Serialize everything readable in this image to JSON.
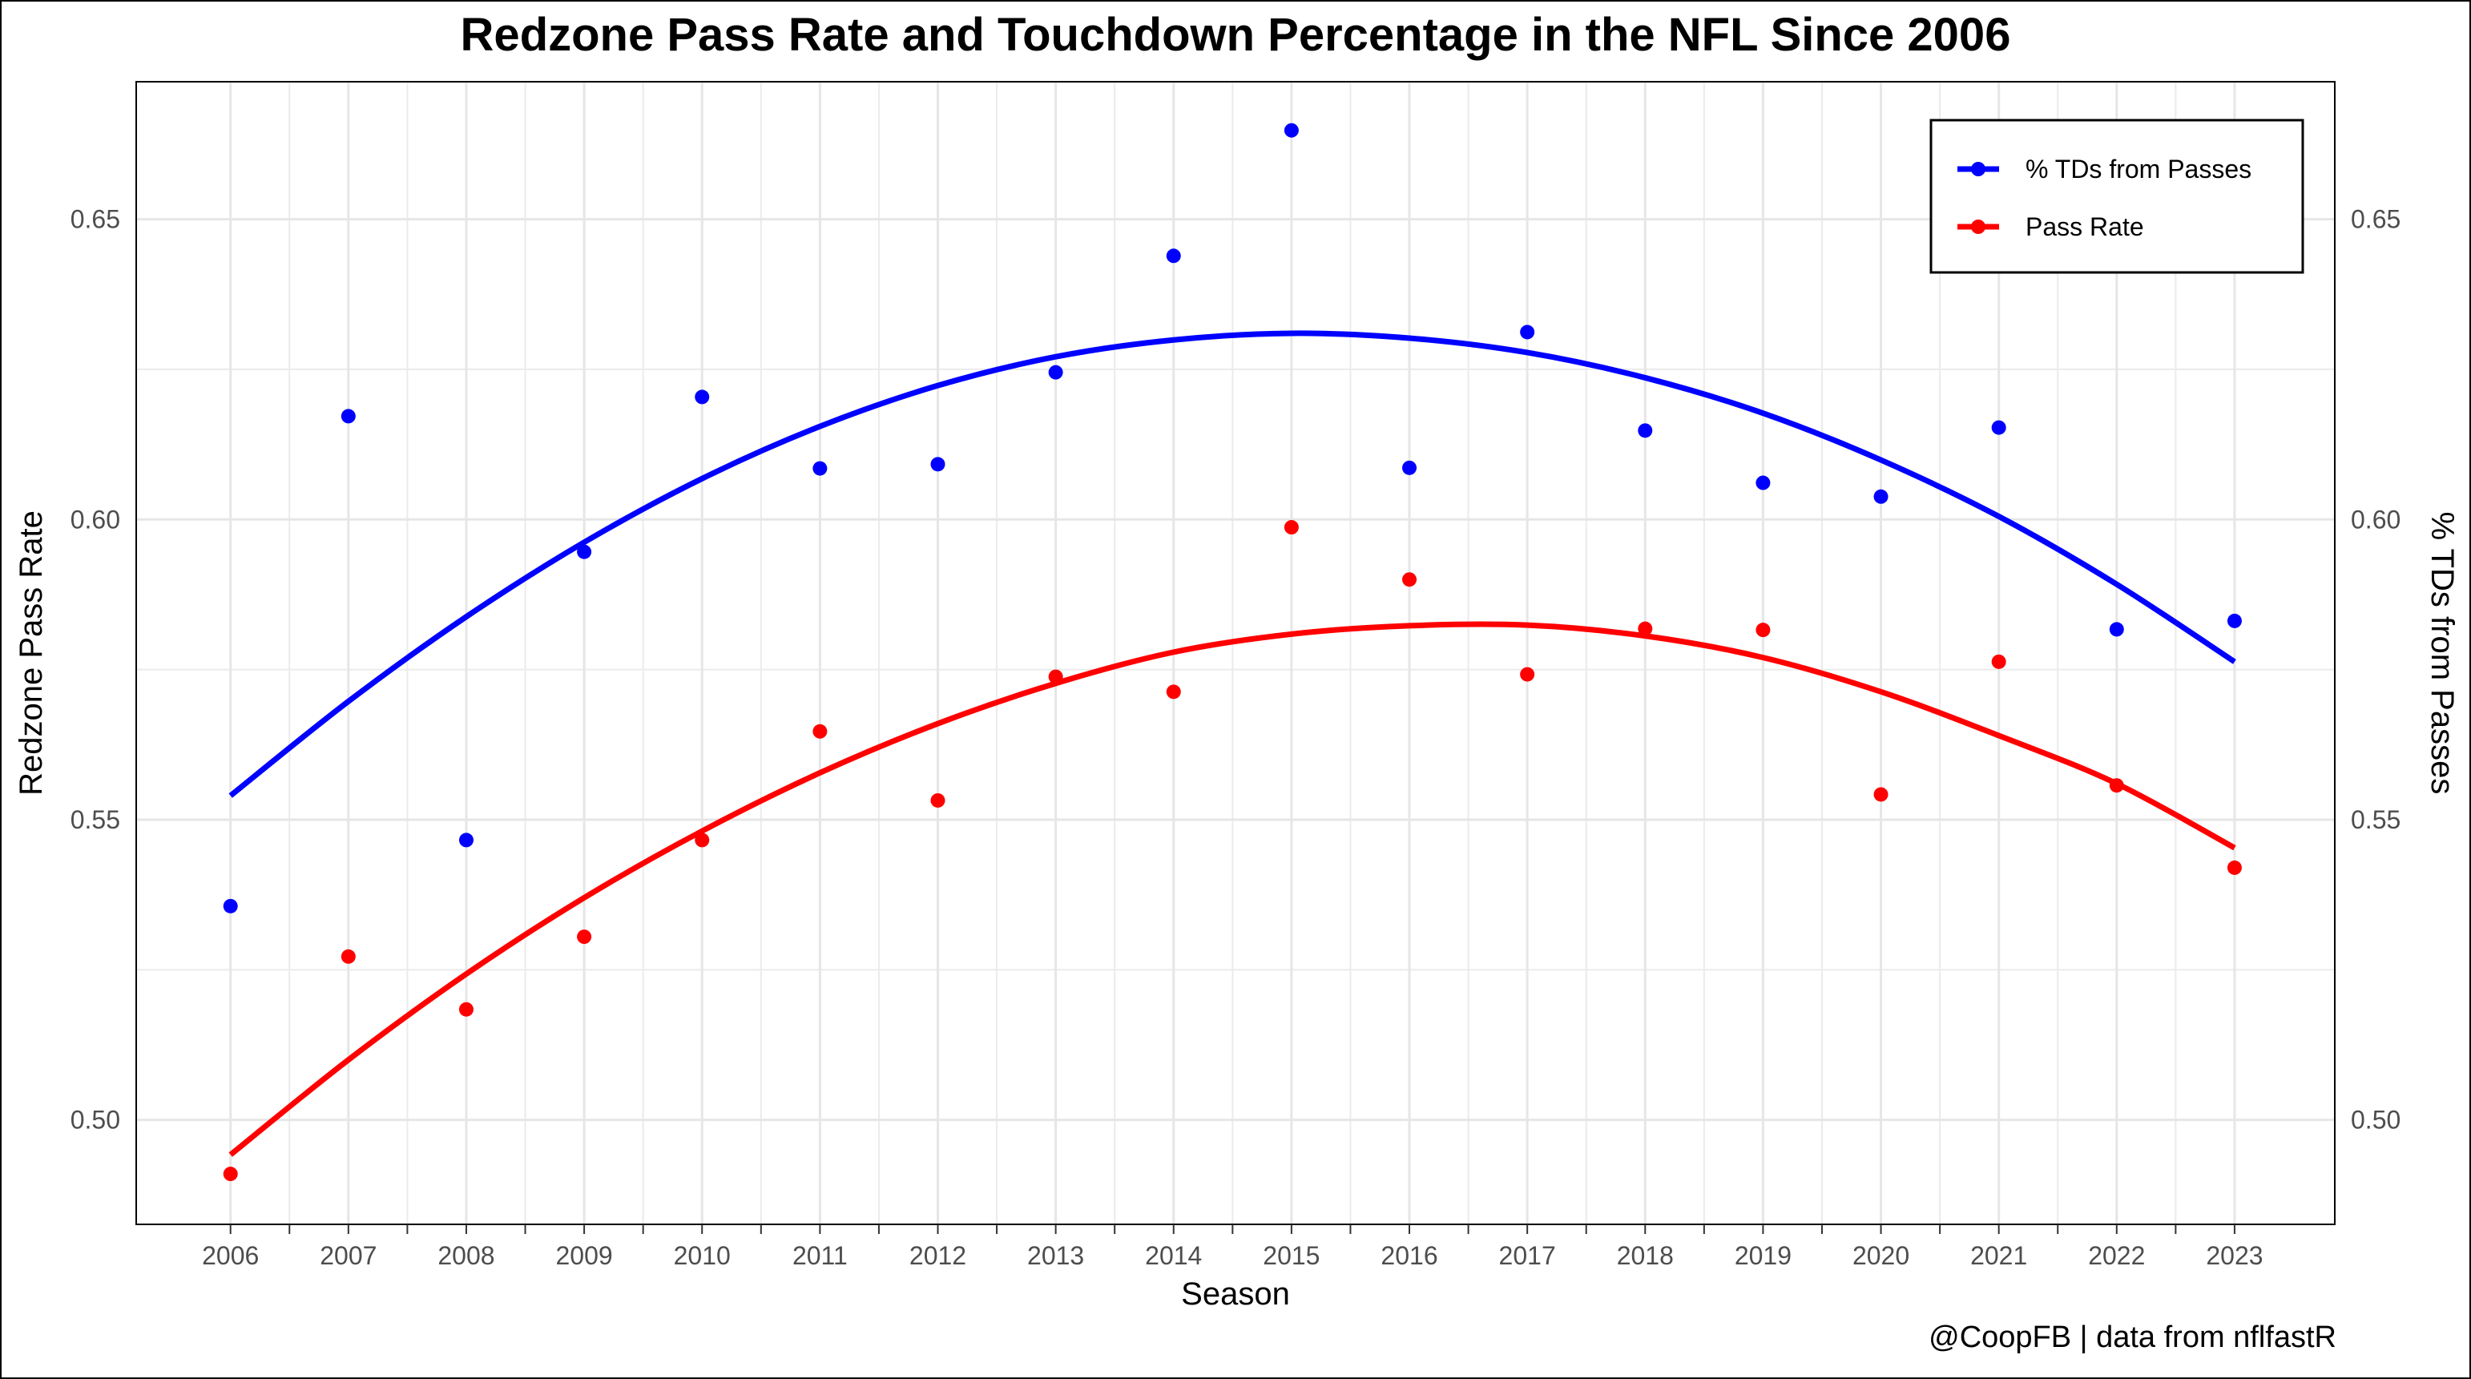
{
  "title": "Redzone Pass Rate and Touchdown Percentage in the NFL Since 2006",
  "caption": "@CoopFB | data from nflfastR",
  "chart_data": {
    "type": "scatter",
    "title": "Redzone Pass Rate and Touchdown Percentage in the NFL Since 2006",
    "xlabel": "Season",
    "ylabel": "Redzone Pass Rate",
    "ylabel_right": "% TDs from Passes",
    "x": [
      2006,
      2007,
      2008,
      2009,
      2010,
      2011,
      2012,
      2013,
      2014,
      2015,
      2016,
      2017,
      2018,
      2019,
      2020,
      2021,
      2022,
      2023
    ],
    "xlim": [
      2005.2,
      2023.85
    ],
    "ylim": [
      0.4826,
      0.6729
    ],
    "y_ticks": [
      0.5,
      0.55,
      0.6,
      0.65
    ],
    "y_tick_labels": [
      "0.50",
      "0.55",
      "0.60",
      "0.65"
    ],
    "grid": true,
    "legend_position": "top-right",
    "series": [
      {
        "name": "% TDs from Passes",
        "color": "#0000ff",
        "values": [
          0.5356,
          0.6172,
          0.5466,
          0.5946,
          0.6204,
          0.6085,
          0.6092,
          0.6245,
          0.6439,
          0.6648,
          0.6086,
          0.6312,
          0.6148,
          0.6061,
          0.6038,
          0.6153,
          0.5817,
          0.5831
        ],
        "trend": [
          0.554,
          0.5697,
          0.5838,
          0.5962,
          0.6068,
          0.6155,
          0.6223,
          0.6271,
          0.6299,
          0.631,
          0.6302,
          0.6278,
          0.6236,
          0.6177,
          0.6099,
          0.6005,
          0.5892,
          0.5763
        ]
      },
      {
        "name": "Pass Rate",
        "color": "#ff0000",
        "values": [
          0.491,
          0.5272,
          0.5184,
          0.5305,
          0.5466,
          0.5647,
          0.5532,
          0.5738,
          0.5713,
          0.5987,
          0.59,
          0.5742,
          0.5818,
          0.5816,
          0.5542,
          0.5763,
          0.5557,
          0.542
        ],
        "trend": [
          0.4942,
          0.51,
          0.5243,
          0.537,
          0.5481,
          0.5578,
          0.566,
          0.5727,
          0.5779,
          0.5809,
          0.5823,
          0.5824,
          0.5806,
          0.577,
          0.5713,
          0.564,
          0.556,
          0.5453
        ]
      }
    ]
  }
}
